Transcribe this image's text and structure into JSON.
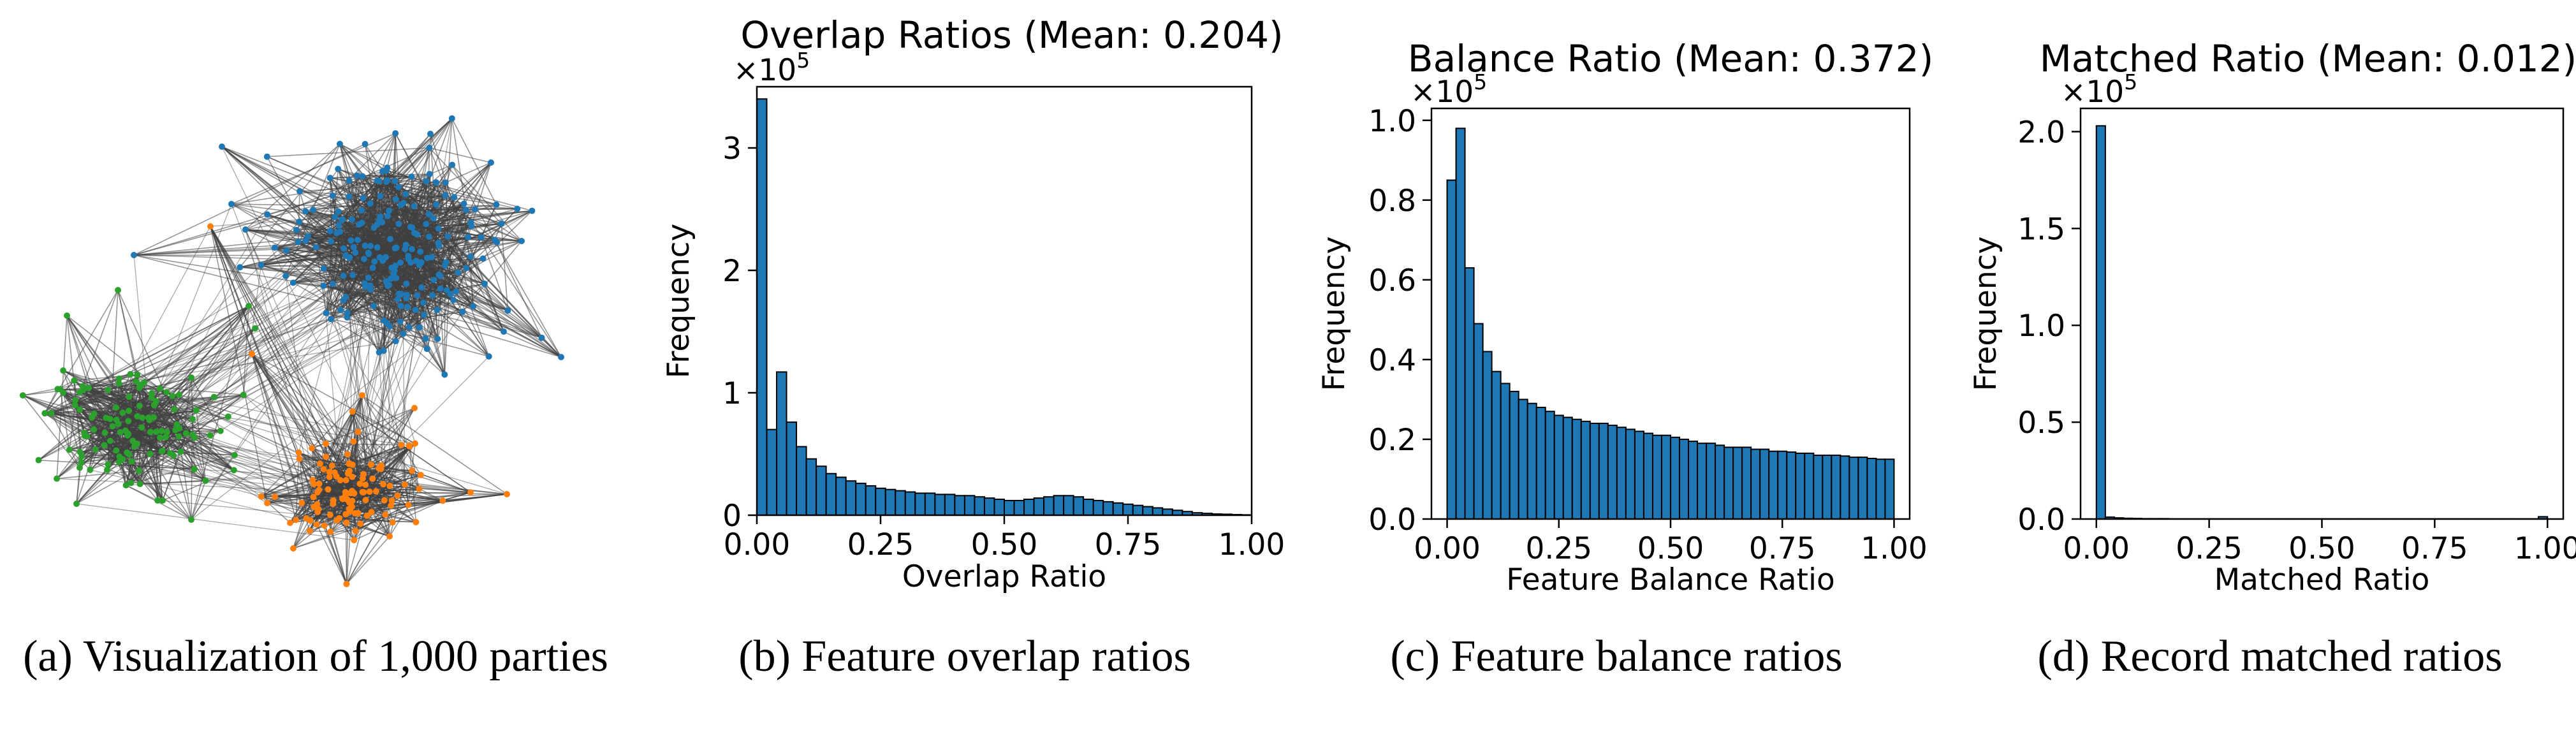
{
  "colors": {
    "bar_fill": "#1f77b4",
    "bar_edge": "#000000",
    "edge": "#404040",
    "cluster_blue": "#1f77b4",
    "cluster_green": "#2ca02c",
    "cluster_orange": "#ff7f0e"
  },
  "network": {
    "caption": "(a) Visualization of 1,000 parties",
    "clusters": [
      "cluster_blue",
      "cluster_green",
      "cluster_orange"
    ]
  },
  "chart_data": [
    {
      "type": "bar",
      "title": "Overlap Ratios (Mean: 0.204)",
      "xlabel": "Overlap Ratio",
      "ylabel": "Frequency",
      "multiplier": "×10",
      "exponent": "5",
      "caption": "(b) Feature overlap ratios",
      "xlim": [
        0,
        1
      ],
      "ylim": [
        0,
        3.5
      ],
      "xticks": [
        0.0,
        0.25,
        0.5,
        0.75,
        1.0
      ],
      "xtick_labels": [
        "0.00",
        "0.25",
        "0.50",
        "0.75",
        "1.00"
      ],
      "yticks": [
        0,
        1,
        2,
        3
      ],
      "ytick_labels": [
        "0",
        "1",
        "2",
        "3"
      ],
      "bin_start": 0.0,
      "bin_width": 0.02,
      "values": [
        3.4,
        0.7,
        1.17,
        0.76,
        0.56,
        0.46,
        0.4,
        0.34,
        0.31,
        0.28,
        0.26,
        0.24,
        0.22,
        0.21,
        0.2,
        0.19,
        0.18,
        0.18,
        0.17,
        0.17,
        0.16,
        0.16,
        0.15,
        0.14,
        0.13,
        0.12,
        0.12,
        0.13,
        0.14,
        0.15,
        0.16,
        0.16,
        0.15,
        0.13,
        0.12,
        0.11,
        0.1,
        0.09,
        0.08,
        0.07,
        0.06,
        0.05,
        0.04,
        0.03,
        0.02,
        0.015,
        0.01,
        0.008,
        0.005,
        0.003
      ]
    },
    {
      "type": "bar",
      "title": "Balance Ratio (Mean: 0.372)",
      "xlabel": "Feature Balance Ratio",
      "ylabel": "Frequency",
      "multiplier": "×10",
      "exponent": "5",
      "caption": "(c) Feature balance ratios",
      "xlim": [
        -0.035,
        1.035
      ],
      "ylim": [
        0,
        1.03
      ],
      "xticks": [
        0.0,
        0.25,
        0.5,
        0.75,
        1.0
      ],
      "xtick_labels": [
        "0.00",
        "0.25",
        "0.50",
        "0.75",
        "1.00"
      ],
      "yticks": [
        0,
        0.2,
        0.4,
        0.6,
        0.8,
        1.0
      ],
      "ytick_labels": [
        "0.0",
        "0.2",
        "0.4",
        "0.6",
        "0.8",
        "1.0"
      ],
      "bin_start": 0.0,
      "bin_width": 0.02,
      "values": [
        0.85,
        0.98,
        0.63,
        0.49,
        0.42,
        0.37,
        0.34,
        0.32,
        0.3,
        0.29,
        0.28,
        0.27,
        0.26,
        0.255,
        0.25,
        0.245,
        0.24,
        0.24,
        0.235,
        0.23,
        0.225,
        0.22,
        0.215,
        0.21,
        0.21,
        0.205,
        0.2,
        0.195,
        0.19,
        0.19,
        0.185,
        0.18,
        0.18,
        0.18,
        0.175,
        0.175,
        0.17,
        0.17,
        0.168,
        0.165,
        0.165,
        0.16,
        0.16,
        0.16,
        0.158,
        0.155,
        0.155,
        0.152,
        0.15,
        0.15
      ]
    },
    {
      "type": "bar",
      "title": "Matched Ratio (Mean: 0.012)",
      "xlabel": "Matched Ratio",
      "ylabel": "Frequency",
      "multiplier": "×10",
      "exponent": "5",
      "caption": "(d) Record matched ratios",
      "xlim": [
        -0.035,
        1.035
      ],
      "ylim": [
        0,
        2.12
      ],
      "xticks": [
        0.0,
        0.25,
        0.5,
        0.75,
        1.0
      ],
      "xtick_labels": [
        "0.00",
        "0.25",
        "0.50",
        "0.75",
        "1.00"
      ],
      "yticks": [
        0,
        0.5,
        1.0,
        1.5,
        2.0
      ],
      "ytick_labels": [
        "0.0",
        "0.5",
        "1.0",
        "1.5",
        "2.0"
      ],
      "bin_start": 0.0,
      "bin_width": 0.02,
      "values": [
        2.03,
        0.01,
        0.006,
        0.004,
        0.003,
        0.002,
        0.002,
        0.002,
        0.001,
        0.001,
        0.001,
        0.001,
        0.001,
        0.001,
        0.001,
        0.001,
        0.001,
        0.001,
        0.001,
        0.001,
        0.001,
        0.001,
        0.001,
        0.001,
        0.001,
        0.001,
        0.001,
        0.001,
        0.001,
        0.001,
        0.001,
        0.001,
        0.001,
        0.001,
        0.001,
        0.001,
        0.001,
        0.001,
        0.001,
        0.001,
        0.001,
        0.001,
        0.001,
        0.001,
        0.001,
        0.001,
        0.001,
        0.001,
        0.001,
        0.012
      ]
    }
  ]
}
